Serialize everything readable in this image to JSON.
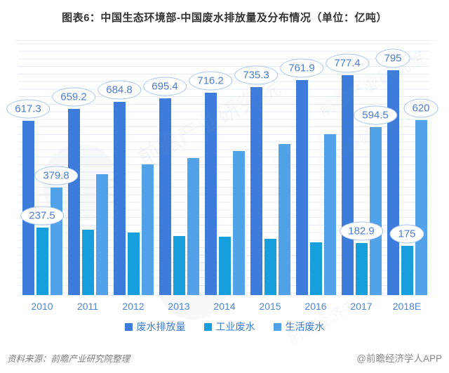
{
  "title": "图表6：中国生态环境部-中国废水排放量及分布情况（单位：亿吨）",
  "footer": {
    "source": "资料来源：前瞻产业研究院整理",
    "credit": "@前瞻经济学人APP"
  },
  "watermarks": [
    "前瞻产业研究院",
    "前瞻产业研究院",
    "前瞻经济学人APP",
    "前瞻经济学人"
  ],
  "colors": {
    "series_total": "#3d7cdb",
    "series_industrial": "#169fdc",
    "series_domestic": "#52a2e9",
    "bubble_border": "#a9c5ec",
    "bubble_text": "#4b7cd2",
    "axis_text": "#4c86d8",
    "gridline": "#e4ebf6"
  },
  "chart_data": {
    "type": "bar",
    "title": "图表6：中国生态环境部-中国废水排放量及分布情况（单位：亿吨）",
    "xlabel": "",
    "ylabel": "亿吨",
    "ylim": [
      0,
      890
    ],
    "grid": true,
    "legend_position": "bottom",
    "categories": [
      "2010",
      "2011",
      "2012",
      "2013",
      "2014",
      "2015",
      "2016",
      "2017",
      "2018E"
    ],
    "series": [
      {
        "name": "废水排放量",
        "color": "#3d7cdb",
        "values": [
          617.3,
          659.2,
          684.8,
          695.4,
          716.2,
          735.3,
          761.9,
          777.4,
          795
        ]
      },
      {
        "name": "工业废水",
        "color": "#169fdc",
        "values": [
          237.5,
          230.9,
          221.6,
          209.8,
          205.3,
          199.5,
          186.4,
          182.9,
          175
        ]
      },
      {
        "name": "生活废水",
        "color": "#52a2e9",
        "values": [
          379.8,
          427.9,
          462.7,
          485.1,
          510.3,
          535.2,
          570.5,
          594.5,
          620
        ]
      }
    ],
    "note": "Only some bars carry value labels; unlabeled industrial/domestic 2011-2016 values are estimated from bar heights.",
    "value_labels": [
      {
        "series": 0,
        "category_index": 0,
        "text": "617.3"
      },
      {
        "series": 0,
        "category_index": 1,
        "text": "659.2"
      },
      {
        "series": 0,
        "category_index": 2,
        "text": "684.8"
      },
      {
        "series": 0,
        "category_index": 3,
        "text": "695.4"
      },
      {
        "series": 0,
        "category_index": 4,
        "text": "716.2"
      },
      {
        "series": 0,
        "category_index": 5,
        "text": "735.3"
      },
      {
        "series": 0,
        "category_index": 6,
        "text": "761.9"
      },
      {
        "series": 0,
        "category_index": 7,
        "text": "777.4"
      },
      {
        "series": 0,
        "category_index": 8,
        "text": "795"
      },
      {
        "series": 1,
        "category_index": 0,
        "text": "237.5"
      },
      {
        "series": 1,
        "category_index": 7,
        "text": "182.9"
      },
      {
        "series": 1,
        "category_index": 8,
        "text": "175"
      },
      {
        "series": 2,
        "category_index": 0,
        "text": "379.8"
      },
      {
        "series": 2,
        "category_index": 7,
        "text": "594.5"
      },
      {
        "series": 2,
        "category_index": 8,
        "text": "620"
      }
    ]
  }
}
